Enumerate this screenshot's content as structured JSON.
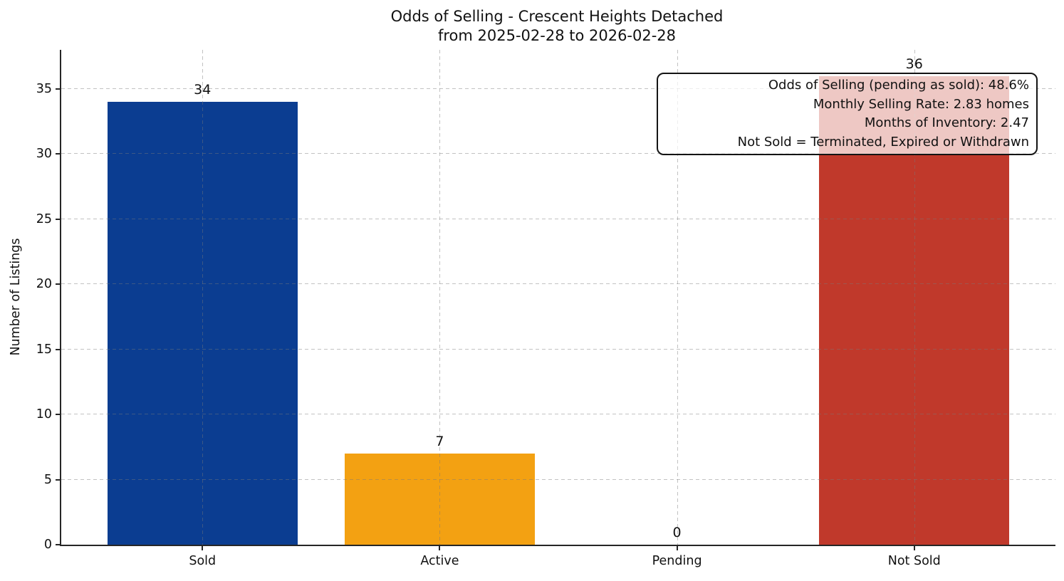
{
  "figure": {
    "title_line1": "Odds of Selling - Crescent Heights Detached",
    "title_line2": "from 2025-02-28 to 2026-02-28",
    "ylabel": "Number of Listings"
  },
  "chart_data": {
    "type": "bar",
    "title": "Odds of Selling - Crescent Heights Detached\nfrom 2025-02-28 to 2026-02-28",
    "xlabel": "",
    "ylabel": "Number of Listings",
    "categories": [
      "Sold",
      "Active",
      "Pending",
      "Not Sold"
    ],
    "values": [
      34,
      7,
      0,
      36
    ],
    "value_labels": [
      "34",
      "7",
      "0",
      "36"
    ],
    "bar_colors": [
      "#0b3d91",
      "#f3a112",
      "#808080",
      "#c0392b"
    ],
    "yticks": [
      0,
      5,
      10,
      15,
      20,
      25,
      30,
      35
    ],
    "ylim": [
      0,
      38
    ],
    "xlim": [
      -0.595,
      3.595
    ],
    "bar_width": 0.8,
    "grid": "dashed gridlines on both axes, drawn over bars",
    "legend": "none",
    "annotation": {
      "position": "top-right",
      "align": "right",
      "lines": [
        "Odds of Selling (pending as sold): 48.6%",
        "Monthly Selling Rate: 2.83 homes",
        "Months of Inventory: 2.47",
        "Not Sold = Terminated, Expired or Withdrawn"
      ]
    },
    "colors_meaning": {
      "sold": "#0b3d91",
      "active": "#f3a112",
      "not_sold": "#c0392b"
    }
  }
}
